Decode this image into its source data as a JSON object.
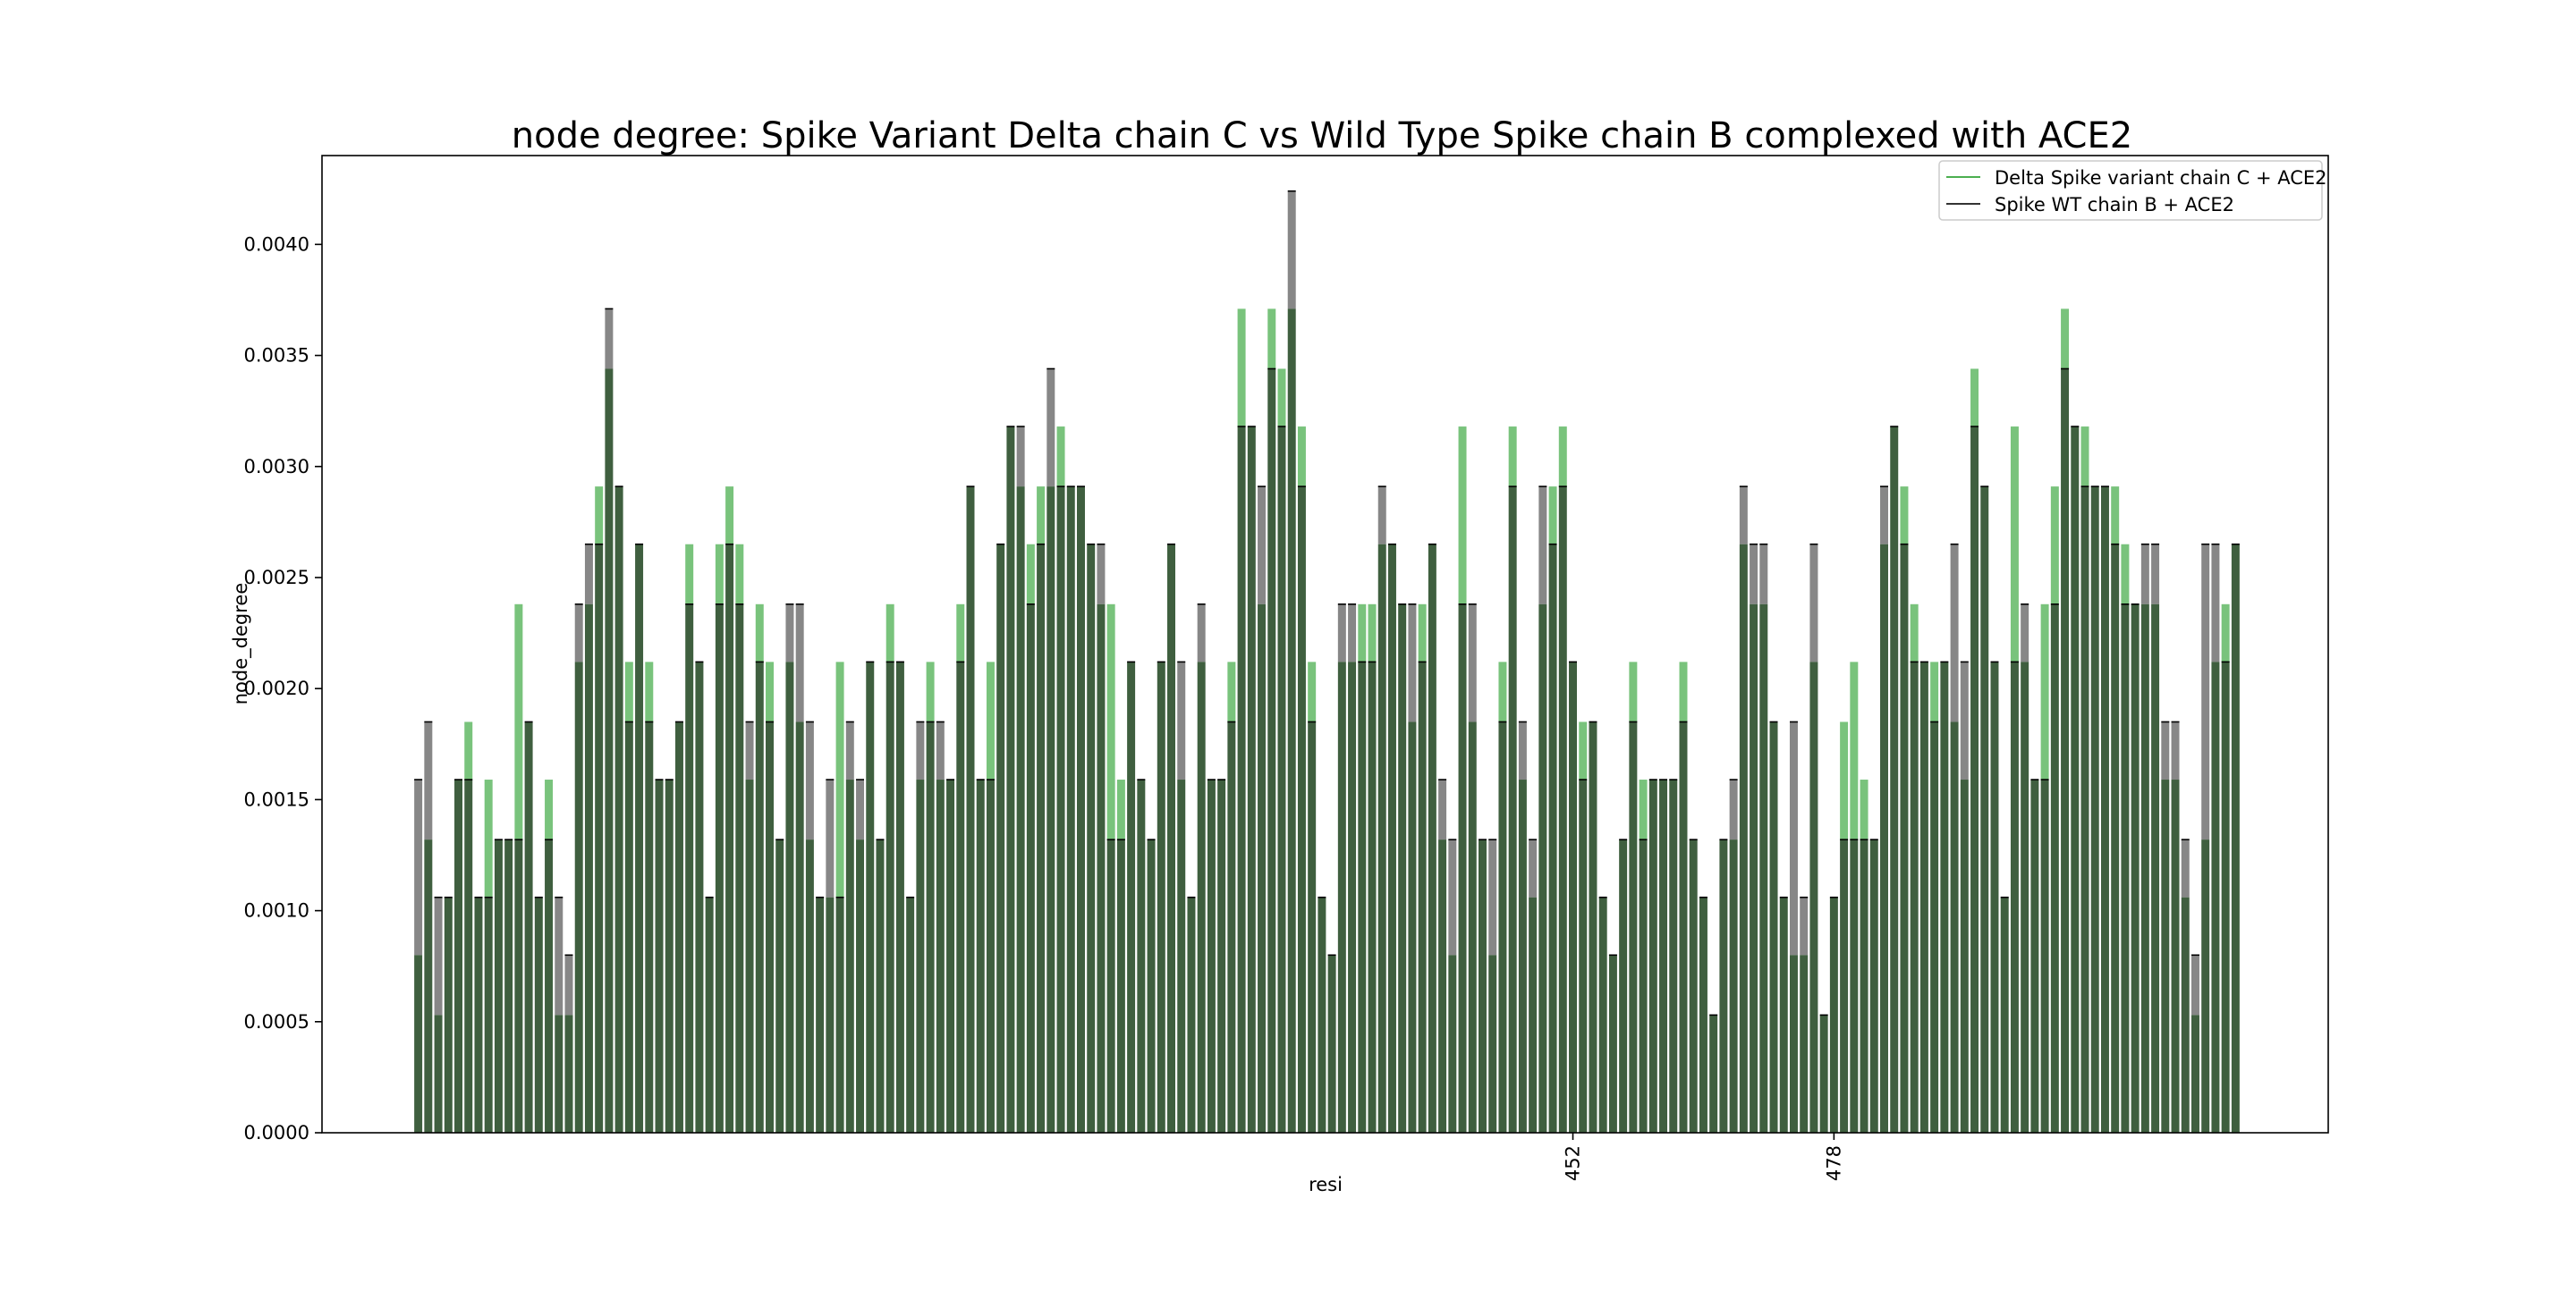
{
  "chart_data": {
    "type": "bar",
    "title": "node degree: Spike Variant Delta chain C vs Wild Type Spike chain B complexed with ACE2",
    "xlabel": "resi",
    "ylabel": "node_degree",
    "ylim": [
      0,
      0.0044
    ],
    "yticks": [
      "0.0000",
      "0.0005",
      "0.0010",
      "0.0015",
      "0.0020",
      "0.0025",
      "0.0030",
      "0.0035",
      "0.0040"
    ],
    "xtick_labels": [
      {
        "index": 115,
        "label": "452"
      },
      {
        "index": 141,
        "label": "478"
      }
    ],
    "legend_position": "top-right",
    "grid": false,
    "colors": {
      "variant": "#4caf50",
      "wt": "#7a7a7a",
      "overlap": "#3f5f3f",
      "edge": "#000000"
    },
    "series": [
      {
        "name": "Delta Spike variant chain C + ACE2",
        "values": [
          0.0008,
          0.00132,
          0.00053,
          0.00106,
          0.00159,
          0.00185,
          0.00106,
          0.00159,
          0.00132,
          0.00132,
          0.00238,
          0.00185,
          0.00106,
          0.00159,
          0.00053,
          0.00053,
          0.00212,
          0.00238,
          0.00291,
          0.00344,
          0.00291,
          0.00212,
          0.00265,
          0.00212,
          0.00159,
          0.00159,
          0.00185,
          0.00265,
          0.00212,
          0.00106,
          0.00265,
          0.00291,
          0.00265,
          0.00159,
          0.00238,
          0.00212,
          0.00132,
          0.00212,
          0.00185,
          0.00132,
          0.00106,
          0.00106,
          0.00212,
          0.00159,
          0.00132,
          0.00212,
          0.00132,
          0.00238,
          0.00212,
          0.00106,
          0.00159,
          0.00212,
          0.00159,
          0.00159,
          0.00238,
          0.00291,
          0.00159,
          0.00212,
          0.00265,
          0.00318,
          0.00291,
          0.00265,
          0.00291,
          0.00291,
          0.00318,
          0.00291,
          0.00291,
          0.00265,
          0.00238,
          0.00238,
          0.00159,
          0.00212,
          0.00159,
          0.00132,
          0.00212,
          0.00265,
          0.00159,
          0.00106,
          0.00212,
          0.00159,
          0.00159,
          0.00212,
          0.00371,
          0.00318,
          0.00238,
          0.00371,
          0.00344,
          0.00371,
          0.00318,
          0.00212,
          0.00106,
          0.0008,
          0.00212,
          0.00212,
          0.00238,
          0.00238,
          0.00265,
          0.00265,
          0.00238,
          0.00185,
          0.00238,
          0.00265,
          0.00132,
          0.0008,
          0.00318,
          0.00185,
          0.00132,
          0.0008,
          0.00212,
          0.00318,
          0.00159,
          0.00106,
          0.00238,
          0.00291,
          0.00318,
          0.00212,
          0.00185,
          0.00185,
          0.00106,
          0.0008,
          0.00132,
          0.00212,
          0.00159,
          0.00159,
          0.00159,
          0.00159,
          0.00212,
          0.00132,
          0.00106,
          0.00053,
          0.00132,
          0.00132,
          0.00265,
          0.00238,
          0.00238,
          0.00185,
          0.00106,
          0.0008,
          0.0008,
          0.00212,
          0.00053,
          0.00106,
          0.00185,
          0.00212,
          0.00159,
          0.00132,
          0.00265,
          0.00318,
          0.00291,
          0.00238,
          0.00212,
          0.00212,
          0.00212,
          0.00185,
          0.00159,
          0.00344,
          0.00291,
          0.00212,
          0.00106,
          0.00318,
          0.00212,
          0.00159,
          0.00238,
          0.00291,
          0.00371,
          0.00318,
          0.00318,
          0.00291,
          0.00291,
          0.00291,
          0.00265,
          0.00238,
          0.00238,
          0.00238,
          0.00159,
          0.00159,
          0.00106,
          0.00053,
          0.00132,
          0.00212,
          0.00238,
          0.00265
        ]
      },
      {
        "name": "Spike WT chain B + ACE2",
        "values": [
          0.00159,
          0.00185,
          0.00106,
          0.00106,
          0.00159,
          0.00159,
          0.00106,
          0.00106,
          0.00132,
          0.00132,
          0.00132,
          0.00185,
          0.00106,
          0.00132,
          0.00106,
          0.0008,
          0.00238,
          0.00265,
          0.00265,
          0.00371,
          0.00291,
          0.00185,
          0.00265,
          0.00185,
          0.00159,
          0.00159,
          0.00185,
          0.00238,
          0.00212,
          0.00106,
          0.00238,
          0.00265,
          0.00238,
          0.00185,
          0.00212,
          0.00185,
          0.00132,
          0.00238,
          0.00238,
          0.00185,
          0.00106,
          0.00159,
          0.00106,
          0.00185,
          0.00159,
          0.00212,
          0.00132,
          0.00212,
          0.00212,
          0.00106,
          0.00185,
          0.00185,
          0.00185,
          0.00159,
          0.00212,
          0.00291,
          0.00159,
          0.00159,
          0.00265,
          0.00318,
          0.00318,
          0.00238,
          0.00265,
          0.00344,
          0.00291,
          0.00291,
          0.00291,
          0.00265,
          0.00265,
          0.00132,
          0.00132,
          0.00212,
          0.00159,
          0.00132,
          0.00212,
          0.00265,
          0.00212,
          0.00106,
          0.00238,
          0.00159,
          0.00159,
          0.00185,
          0.00318,
          0.00318,
          0.00291,
          0.00344,
          0.00318,
          0.00424,
          0.00291,
          0.00185,
          0.00106,
          0.0008,
          0.00238,
          0.00238,
          0.00212,
          0.00212,
          0.00291,
          0.00265,
          0.00238,
          0.00238,
          0.00212,
          0.00265,
          0.00159,
          0.00132,
          0.00238,
          0.00238,
          0.00132,
          0.00132,
          0.00185,
          0.00291,
          0.00185,
          0.00132,
          0.00291,
          0.00265,
          0.00291,
          0.00212,
          0.00159,
          0.00185,
          0.00106,
          0.0008,
          0.00132,
          0.00185,
          0.00132,
          0.00159,
          0.00159,
          0.00159,
          0.00185,
          0.00132,
          0.00106,
          0.00053,
          0.00132,
          0.00159,
          0.00291,
          0.00265,
          0.00265,
          0.00185,
          0.00106,
          0.00185,
          0.00106,
          0.00265,
          0.00053,
          0.00106,
          0.00132,
          0.00132,
          0.00132,
          0.00132,
          0.00291,
          0.00318,
          0.00265,
          0.00212,
          0.00212,
          0.00185,
          0.00212,
          0.00265,
          0.00212,
          0.00318,
          0.00291,
          0.00212,
          0.00106,
          0.00212,
          0.00238,
          0.00159,
          0.00159,
          0.00238,
          0.00344,
          0.00318,
          0.00291,
          0.00291,
          0.00291,
          0.00265,
          0.00238,
          0.00238,
          0.00265,
          0.00265,
          0.00185,
          0.00185,
          0.00132,
          0.0008,
          0.00265,
          0.00265,
          0.00212,
          0.00265
        ]
      }
    ]
  }
}
